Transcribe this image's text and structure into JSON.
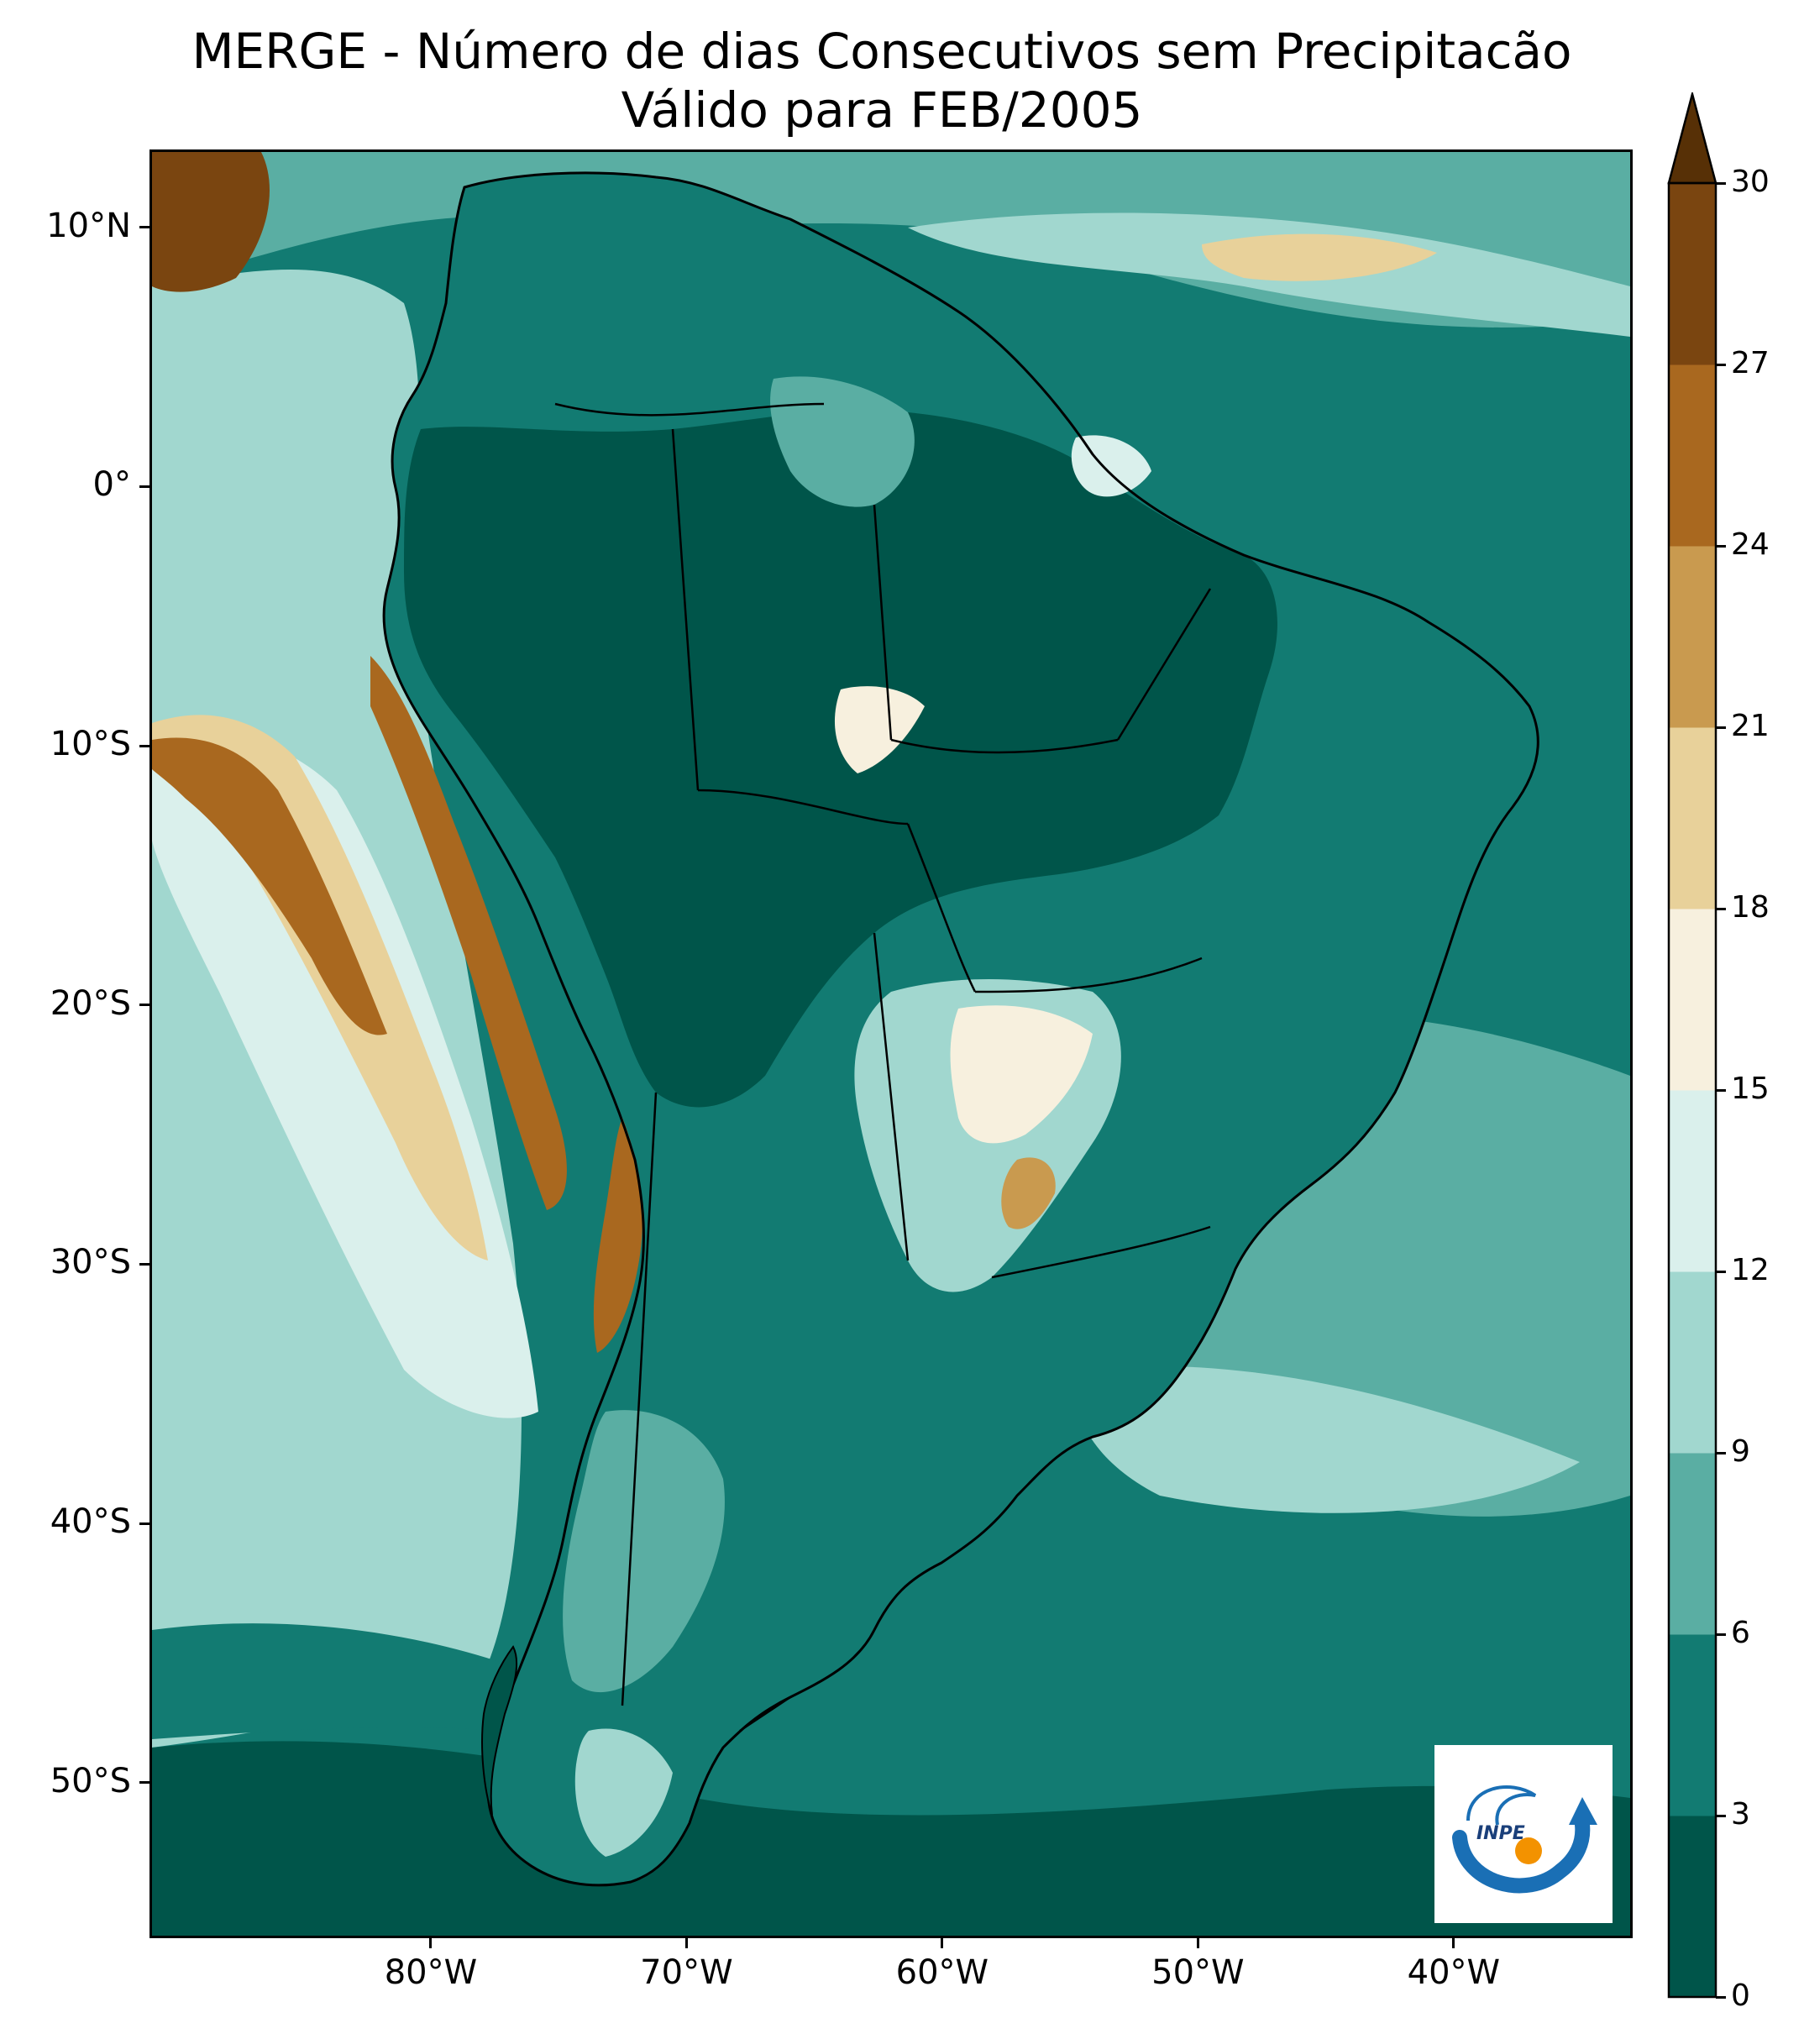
{
  "title": {
    "line1": "MERGE - Número de dias Consecutivos sem Precipitacão",
    "line2": "Válido para FEB/2005"
  },
  "map": {
    "lon_range": [
      -91,
      -33
    ],
    "lat_range": [
      -56,
      13
    ],
    "lat_ticks": [
      {
        "value": 10,
        "label": "10°N"
      },
      {
        "value": 0,
        "label": "0°"
      },
      {
        "value": -10,
        "label": "10°S"
      },
      {
        "value": -20,
        "label": "20°S"
      },
      {
        "value": -30,
        "label": "30°S"
      },
      {
        "value": -40,
        "label": "40°S"
      },
      {
        "value": -50,
        "label": "50°S"
      }
    ],
    "lon_ticks": [
      {
        "value": -80,
        "label": "80°W"
      },
      {
        "value": -70,
        "label": "70°W"
      },
      {
        "value": -60,
        "label": "60°W"
      },
      {
        "value": -50,
        "label": "50°W"
      },
      {
        "value": -40,
        "label": "40°W"
      }
    ]
  },
  "colorbar": {
    "levels": [
      0,
      3,
      6,
      9,
      12,
      15,
      18,
      21,
      24,
      27,
      30
    ],
    "labels": [
      "0",
      "3",
      "6",
      "9",
      "12",
      "15",
      "18",
      "21",
      "24",
      "27",
      "30"
    ],
    "colors": [
      "#00554a",
      "#127b72",
      "#5aaea3",
      "#a1d7cf",
      "#daf0ec",
      "#f7f0de",
      "#e8d19a",
      "#c99a4f",
      "#a9681f",
      "#7a4510",
      "#573006"
    ],
    "extend": "max"
  },
  "logo": {
    "text": "INPE",
    "arc_color": "#1a6fb5",
    "dot_color": "#f39200"
  }
}
